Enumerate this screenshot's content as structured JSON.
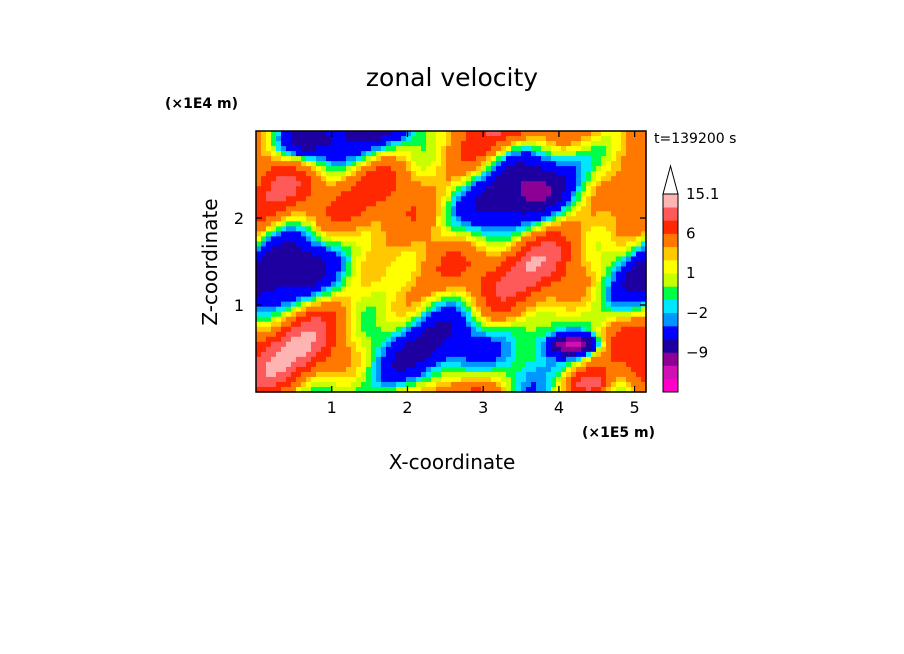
{
  "chart_data": {
    "type": "heatmap",
    "title": "zonal velocity",
    "xlabel": "X-coordinate",
    "ylabel": "Z-coordinate",
    "x_unit": "(×1E5 m)",
    "y_unit": "(×1E4 m)",
    "time_label": "t=139200 s",
    "xlim": [
      0,
      5.15
    ],
    "ylim": [
      0,
      3.0
    ],
    "x_ticks": [
      1,
      2,
      3,
      4,
      5
    ],
    "y_ticks": [
      1,
      2
    ],
    "colorbar": {
      "levels": [
        -15,
        -12,
        -9,
        -6,
        -3,
        -2,
        -1,
        0,
        1,
        2,
        3,
        6,
        9,
        12,
        15.1
      ],
      "labels": [
        {
          "value": 15.1,
          "text": "15.1"
        },
        {
          "value": 6,
          "text": "6"
        },
        {
          "value": 1,
          "text": "1"
        },
        {
          "value": -2,
          "text": "−2"
        },
        {
          "value": -9,
          "text": "−9"
        }
      ],
      "colors": [
        "#ff00c8",
        "#d010b4",
        "#8c0096",
        "#1e00a0",
        "#0000ff",
        "#0096ff",
        "#00e6ff",
        "#00ff46",
        "#c8ff00",
        "#ffff00",
        "#ffc800",
        "#ff7800",
        "#ff2800",
        "#ff5a5a",
        "#ffb4b4"
      ],
      "extend_top": true
    },
    "grid": false
  }
}
